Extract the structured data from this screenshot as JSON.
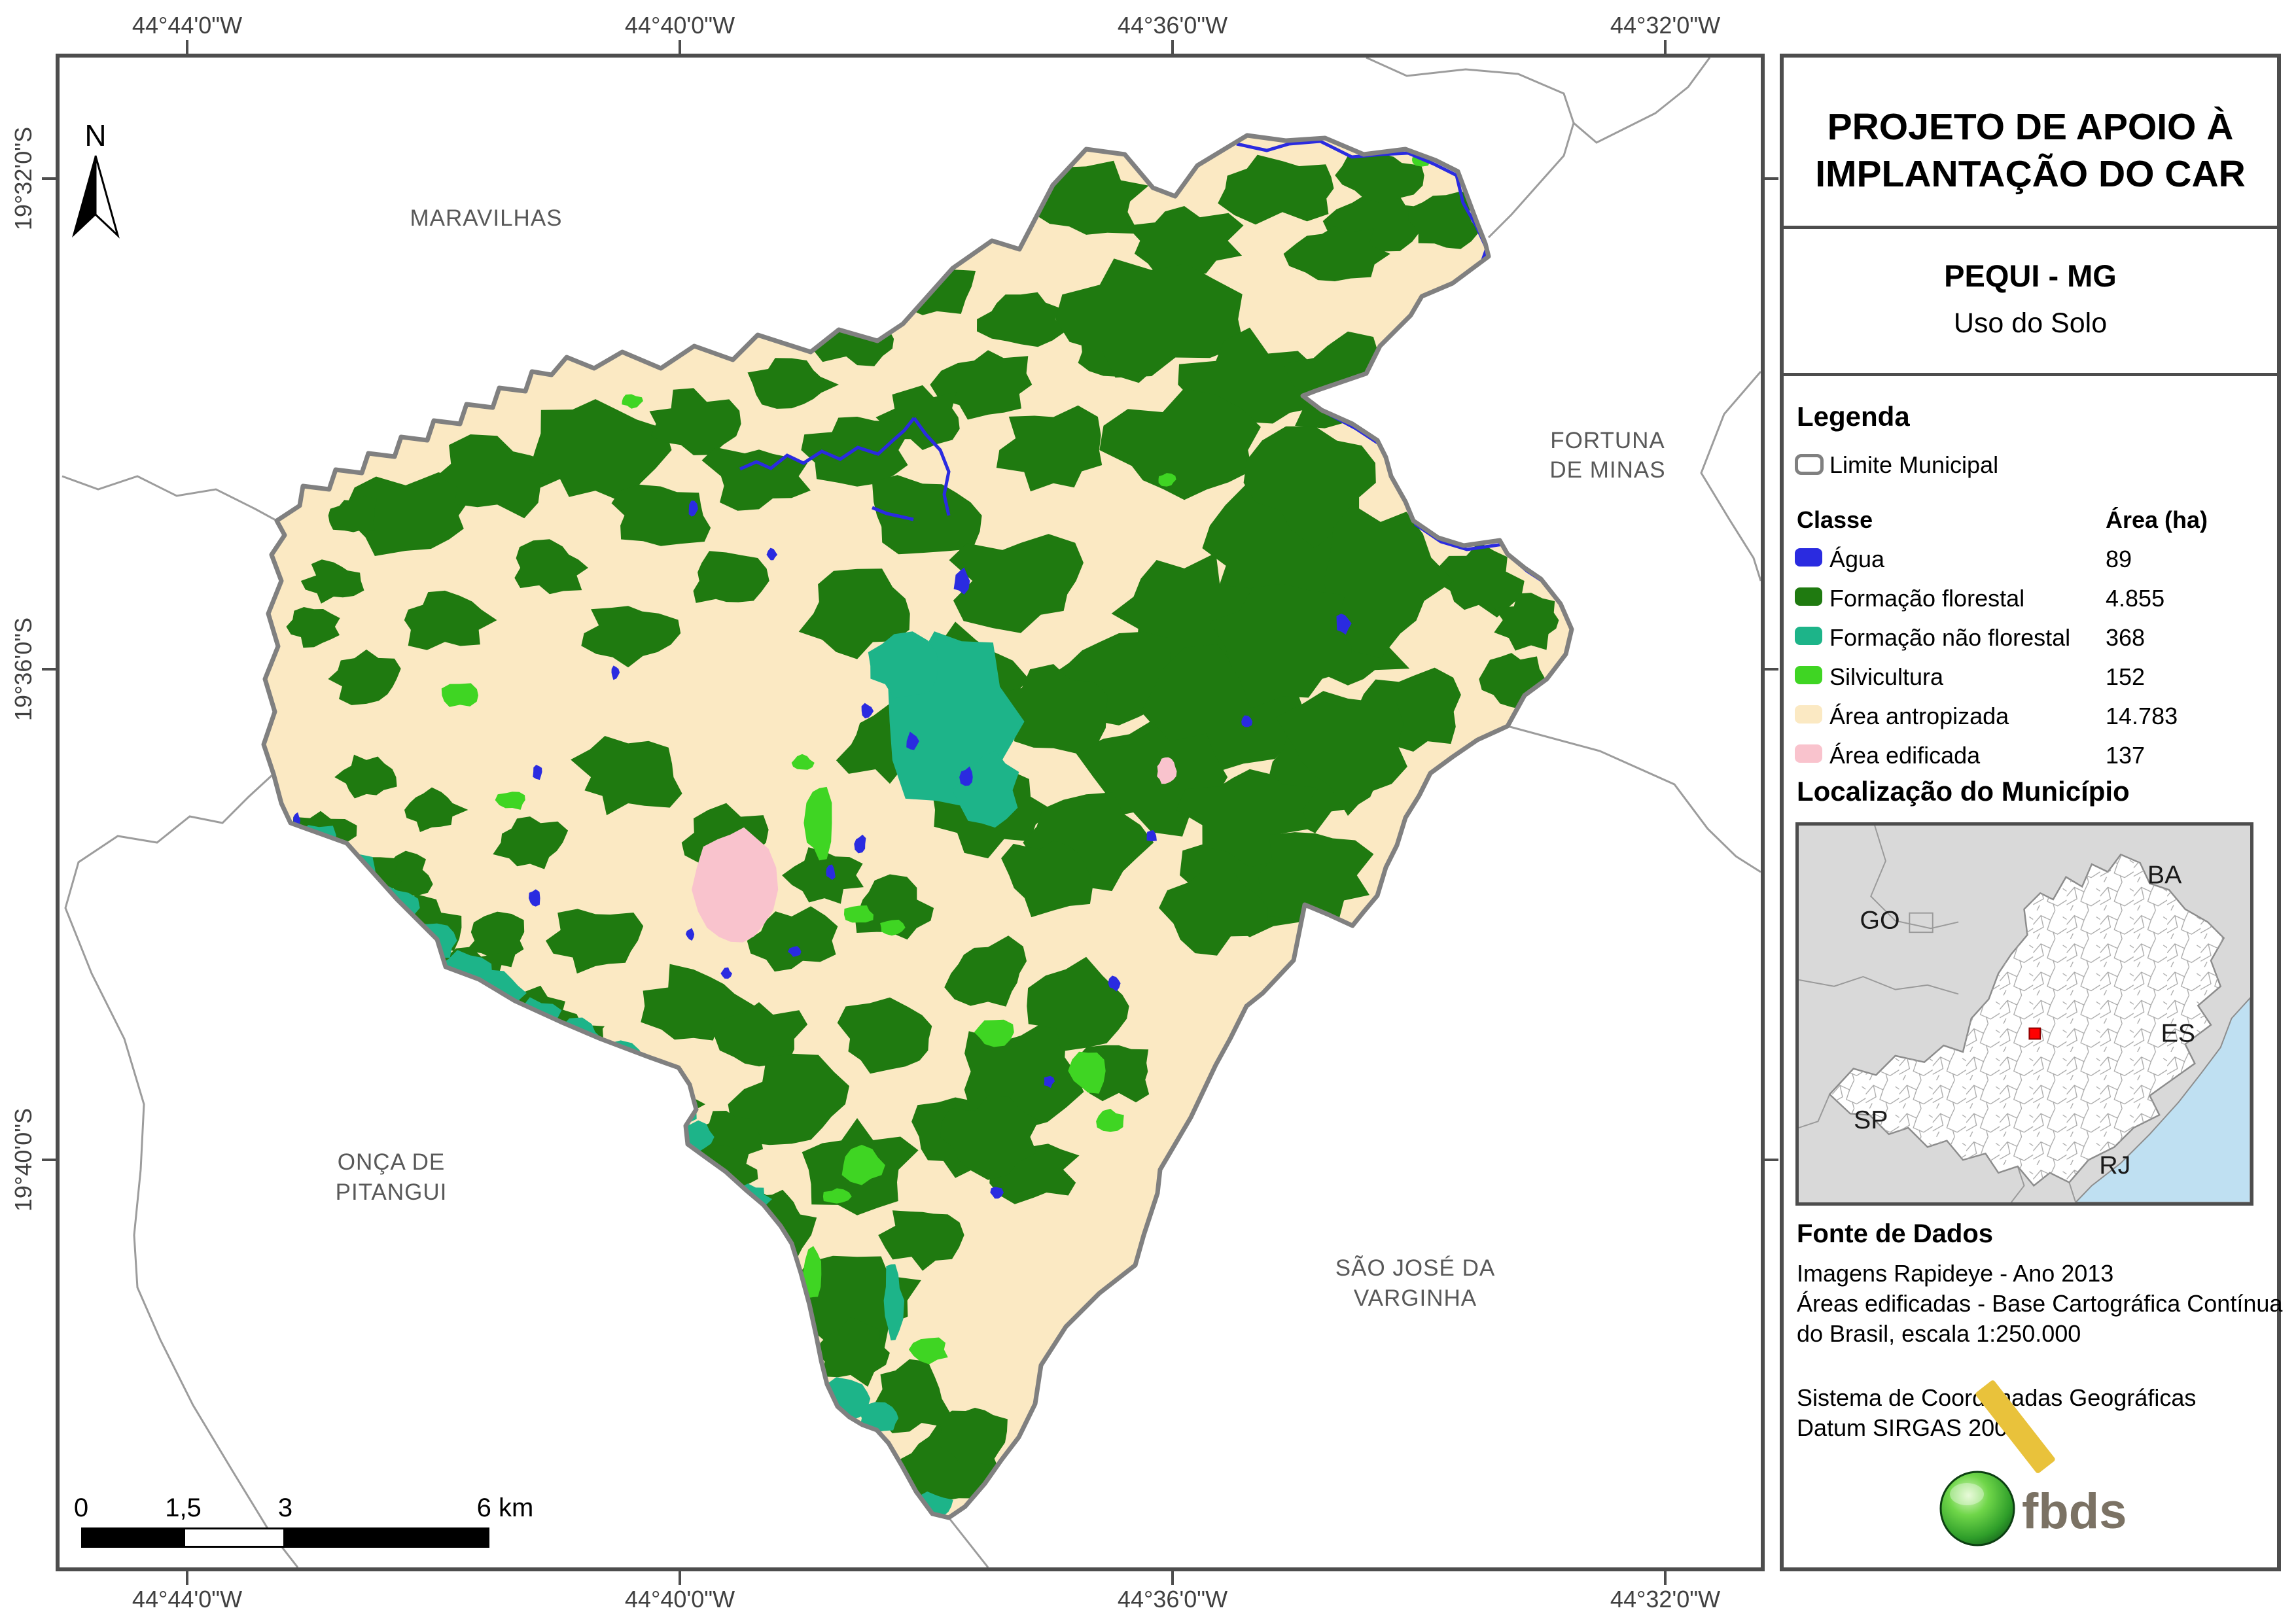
{
  "map": {
    "north_label": "N",
    "coords_top": [
      "44°44'0\"W",
      "44°40'0\"W",
      "44°36'0\"W",
      "44°32'0\"W"
    ],
    "coords_bottom": [
      "44°44'0\"W",
      "44°40'0\"W",
      "44°36'0\"W",
      "44°32'0\"W"
    ],
    "coords_left": [
      "19°32'0\"S",
      "19°36'0\"S",
      "19°40'0\"S"
    ],
    "places": {
      "maravilhas": "MARAVILHAS",
      "fortuna_1": "FORTUNA",
      "fortuna_2": "DE MINAS",
      "sao_jose_1": "SÃO JOSÉ DA",
      "sao_jose_2": "VARGINHA",
      "onca_1": "ONÇA DE",
      "onca_2": "PITANGUI"
    },
    "scale_bar": {
      "t0": "0",
      "t1": "1,5",
      "t2": "3",
      "t3": "6 km"
    }
  },
  "panel": {
    "title_1": "PROJETO DE APOIO À",
    "title_2": "IMPLANTAÇÃO DO CAR",
    "municipality": "PEQUI - MG",
    "map_theme": "Uso do Solo",
    "legend_heading": "Legenda",
    "limite_label": "Limite Municipal",
    "class_col": "Classe",
    "area_col": "Área (ha)",
    "classes": [
      {
        "label": "Água",
        "area": "89",
        "color": "#2a2be0"
      },
      {
        "label": "Formação florestal",
        "area": "4.855",
        "color": "#1f7a10"
      },
      {
        "label": "Formação não florestal",
        "area": "368",
        "color": "#1db489"
      },
      {
        "label": "Silvicultura",
        "area": "152",
        "color": "#3fd523"
      },
      {
        "label": "Área antropizada",
        "area": "14.783",
        "color": "#fbe9c3"
      },
      {
        "label": "Área edificada",
        "area": "137",
        "color": "#f9c3cd"
      }
    ],
    "location_heading": "Localização do Município",
    "states": [
      "GO",
      "BA",
      "ES",
      "SP",
      "RJ"
    ],
    "source_heading": "Fonte de Dados",
    "source_lines": [
      "Imagens Rapideye - Ano 2013",
      "Áreas edificadas - Base Cartográfica Contínua",
      "do Brasil, escala 1:250.000",
      "Sistema de Coordenadas Geográficas",
      "Datum SIRGAS 2000"
    ],
    "logo_text": "fbds"
  }
}
